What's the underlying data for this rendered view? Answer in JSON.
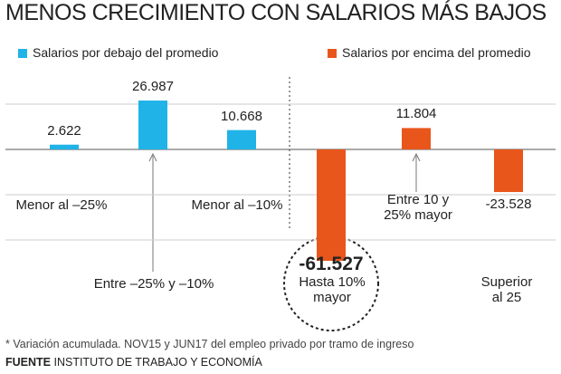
{
  "chart_data": {
    "type": "bar",
    "title": "MENOS CRECIMIENTO CON SALARIOS MÁS BAJOS",
    "categories": [
      "Menor al –25%",
      "Entre –25% y –10%",
      "Menor al –10%",
      "Hasta 10% mayor",
      "Entre 10 y 25% mayor",
      "Superior al 25"
    ],
    "series": [
      {
        "name": "Salarios por debajo del promedio",
        "color": "#1fb3e8",
        "values": [
          2622,
          26987,
          10668,
          null,
          null,
          null
        ],
        "value_labels": [
          "2.622",
          "26.987",
          "10.668",
          null,
          null,
          null
        ]
      },
      {
        "name": "Salarios por encima del promedio",
        "color": "#e8561c",
        "values": [
          null,
          null,
          null,
          -61527,
          11804,
          -23528
        ],
        "value_labels": [
          null,
          null,
          null,
          "-61.527",
          "11.804",
          "-23.528"
        ]
      }
    ],
    "ylim": [
      -62500,
      37500
    ],
    "yticks": [
      -50000,
      -25000,
      0,
      25000
    ],
    "grid": true,
    "note": "* Variación acumulada. NOV15 y JUN17 del empleo privado por tramo de ingreso",
    "source_label": "FUENTE",
    "source": "INSTITUTO DE TRABAJO Y ECONOMÍA"
  }
}
